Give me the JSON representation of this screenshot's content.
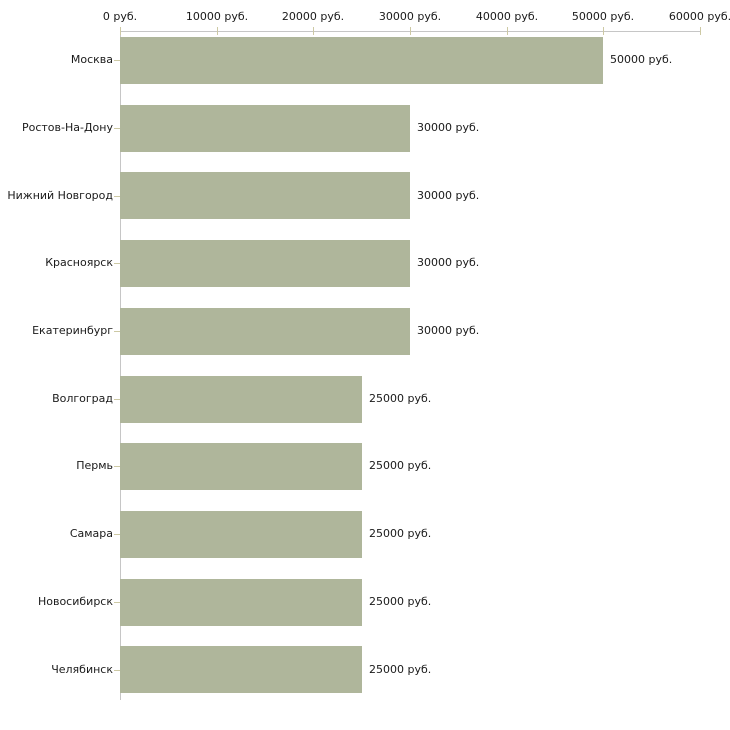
{
  "chart_data": {
    "type": "bar",
    "orientation": "horizontal",
    "title": "",
    "xlabel": "",
    "ylabel": "",
    "xlim": [
      0,
      60000
    ],
    "grid": false,
    "legend": false,
    "x_tick_values": [
      0,
      10000,
      20000,
      30000,
      40000,
      50000,
      60000
    ],
    "x_tick_labels": [
      "0 руб.",
      "10000 руб.",
      "20000 руб.",
      "30000 руб.",
      "40000 руб.",
      "50000 руб.",
      "60000 руб."
    ],
    "categories": [
      "Москва",
      "Ростов-На-Дону",
      "Нижний Новгород",
      "Красноярск",
      "Екатеринбург",
      "Волгоград",
      "Пермь",
      "Самара",
      "Новосибирск",
      "Челябинск"
    ],
    "values": [
      50000,
      30000,
      30000,
      30000,
      30000,
      25000,
      25000,
      25000,
      25000,
      25000
    ],
    "value_labels": [
      "50000 руб.",
      "30000 руб.",
      "30000 руб.",
      "30000 руб.",
      "30000 руб.",
      "25000 руб.",
      "25000 руб.",
      "25000 руб.",
      "25000 руб.",
      "25000 руб."
    ],
    "colors": {
      "bar": "#afb69b",
      "axis_line": "#c6c6c6",
      "tick_mark": "#cdc9a4",
      "text": "#1a1a1a",
      "background": "#ffffff"
    }
  }
}
